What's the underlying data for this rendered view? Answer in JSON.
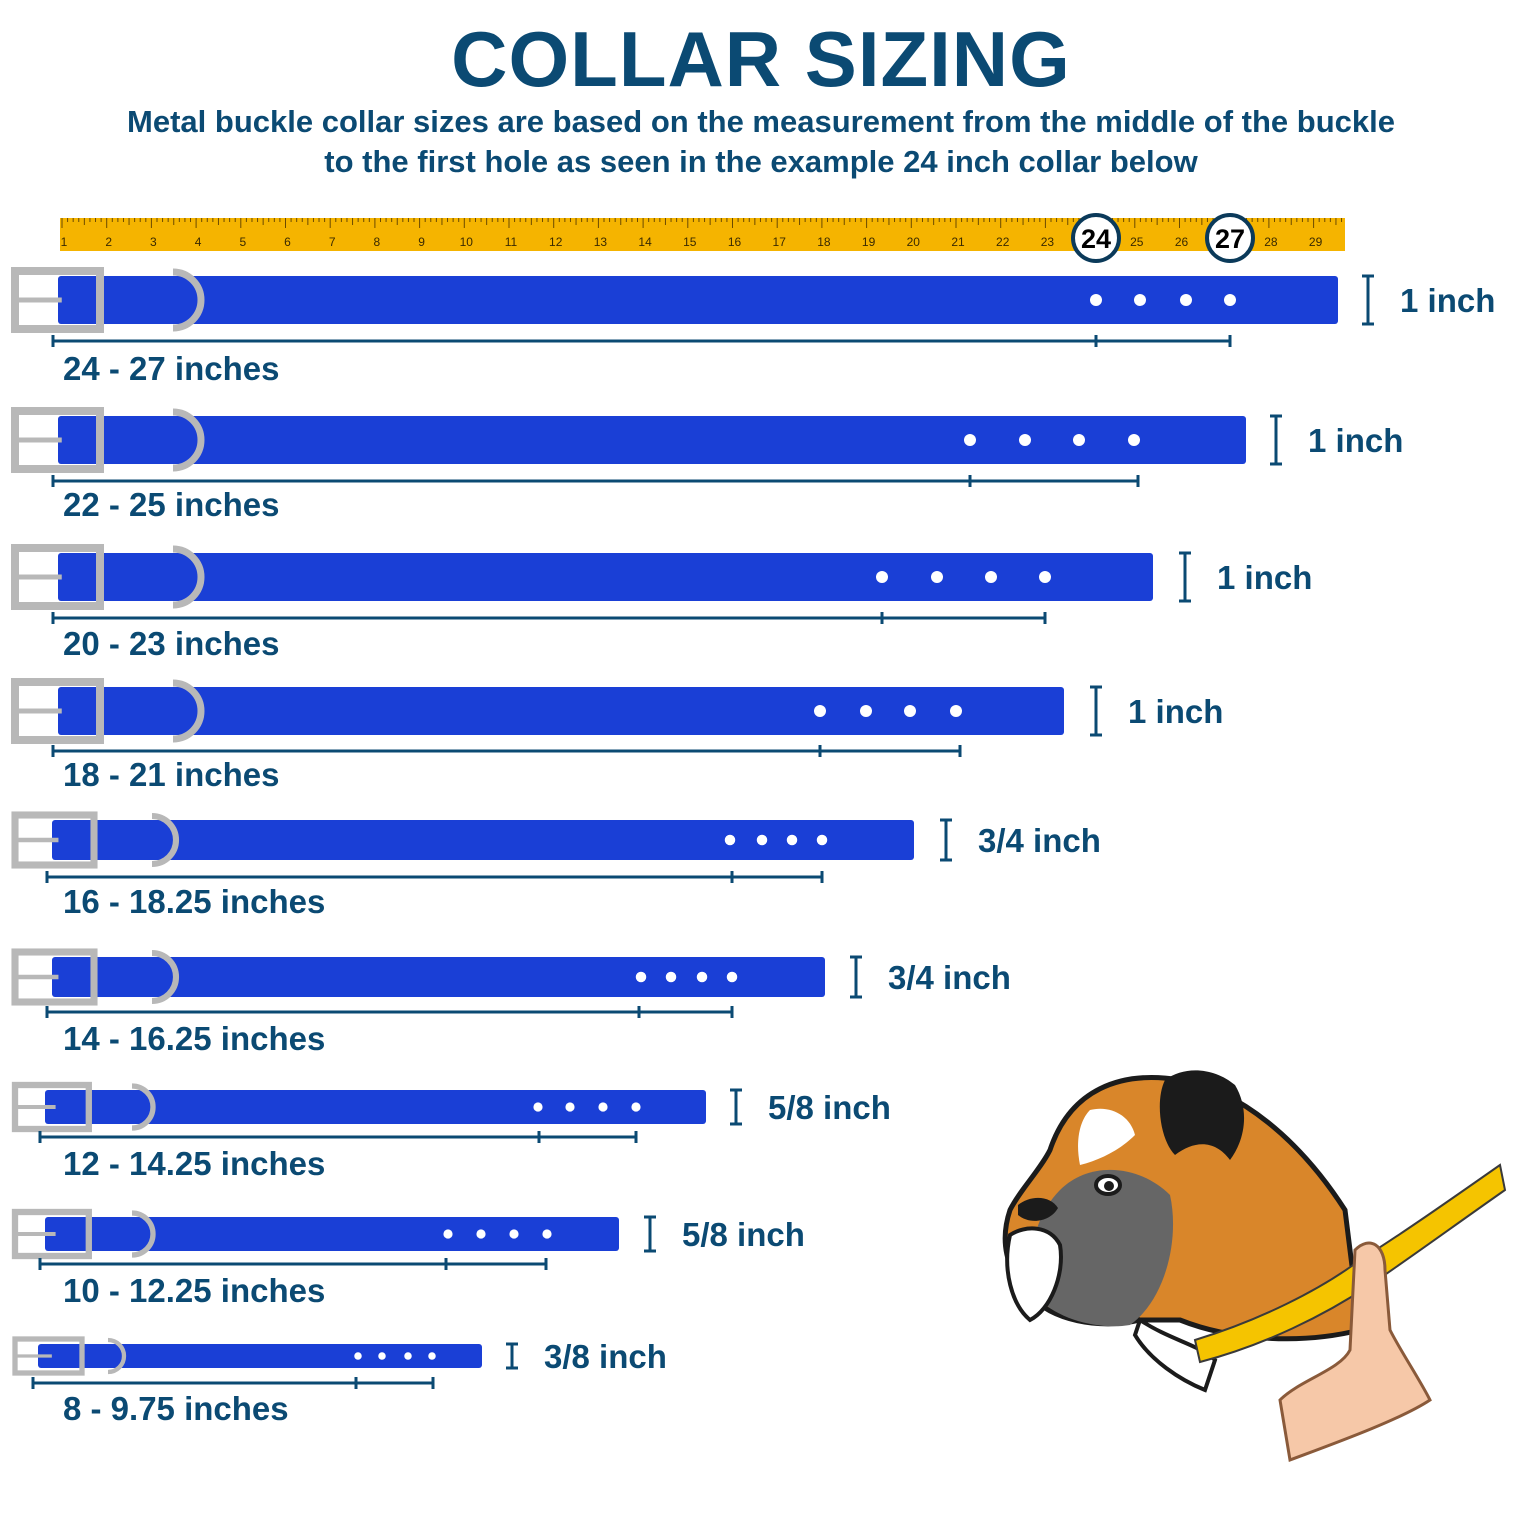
{
  "header": {
    "title": "COLLAR SIZING",
    "subtitle_line1": "Metal buckle collar sizes are based on the measurement from the middle of the buckle",
    "subtitle_line2": "to the first hole as seen in the example 24 inch collar below"
  },
  "ruler": {
    "numbers": [
      "1",
      "2",
      "3",
      "4",
      "5",
      "6",
      "7",
      "8",
      "9",
      "10",
      "11",
      "12",
      "13",
      "14",
      "15",
      "16",
      "17",
      "18",
      "19",
      "20",
      "21",
      "22",
      "23",
      "24",
      "25",
      "26",
      "27",
      "28",
      "29"
    ],
    "circled": [
      "24",
      "27"
    ]
  },
  "collars": [
    {
      "range_label": "24 - 27 inches",
      "width_label": "1 inch"
    },
    {
      "range_label": "22 - 25 inches",
      "width_label": "1 inch"
    },
    {
      "range_label": "20 - 23 inches",
      "width_label": "1 inch"
    },
    {
      "range_label": "18 - 21 inches",
      "width_label": "1 inch"
    },
    {
      "range_label": "16 - 18.25 inches",
      "width_label": "3/4 inch"
    },
    {
      "range_label": "14 - 16.25 inches",
      "width_label": "3/4 inch"
    },
    {
      "range_label": "12 - 14.25 inches",
      "width_label": "5/8 inch"
    },
    {
      "range_label": "10 - 12.25 inches",
      "width_label": "5/8 inch"
    },
    {
      "range_label": "8 - 9.75 inches",
      "width_label": "3/8 inch"
    }
  ],
  "colors": {
    "navy": "#0b4a73",
    "collar_blue": "#1a3fd6",
    "ruler_yellow": "#f5b400",
    "buckle_gray": "#b8b8b8",
    "dog_orange": "#d9862a"
  }
}
